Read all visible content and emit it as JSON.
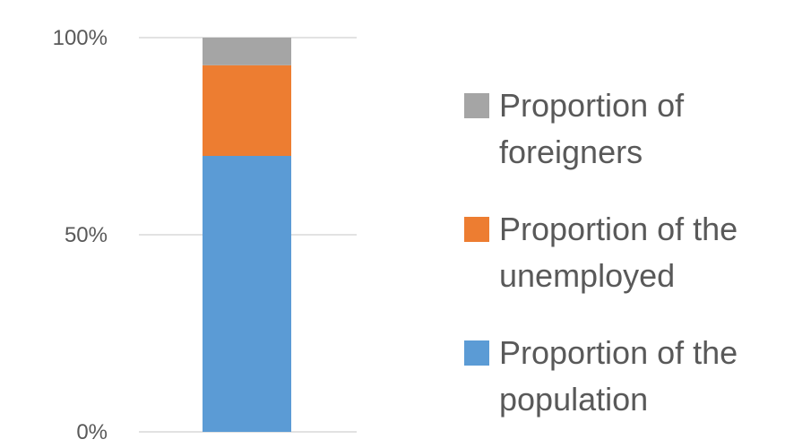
{
  "chart_data": {
    "type": "bar",
    "stacked": true,
    "categories": [
      ""
    ],
    "series": [
      {
        "name": "Proportion of the population",
        "values": [
          70
        ],
        "color": "#5b9bd5"
      },
      {
        "name": "Proportion of the unemployed",
        "values": [
          23
        ],
        "color": "#ed7d31"
      },
      {
        "name": "Proportion of foreigners",
        "values": [
          7
        ],
        "color": "#a5a5a5"
      }
    ],
    "ylim": [
      0,
      100
    ],
    "yticks": [
      0,
      50,
      100
    ],
    "ytick_labels": [
      "0%",
      "50%",
      "100%"
    ],
    "grid": true,
    "legend_position": "right",
    "legend": [
      {
        "lines": [
          "Proportion of",
          "foreigners"
        ],
        "color": "#a5a5a5"
      },
      {
        "lines": [
          "Proportion of the",
          "unemployed"
        ],
        "color": "#ed7d31"
      },
      {
        "lines": [
          "Proportion of the",
          "population"
        ],
        "color": "#5b9bd5"
      }
    ],
    "title": "",
    "xlabel": "",
    "ylabel": ""
  }
}
